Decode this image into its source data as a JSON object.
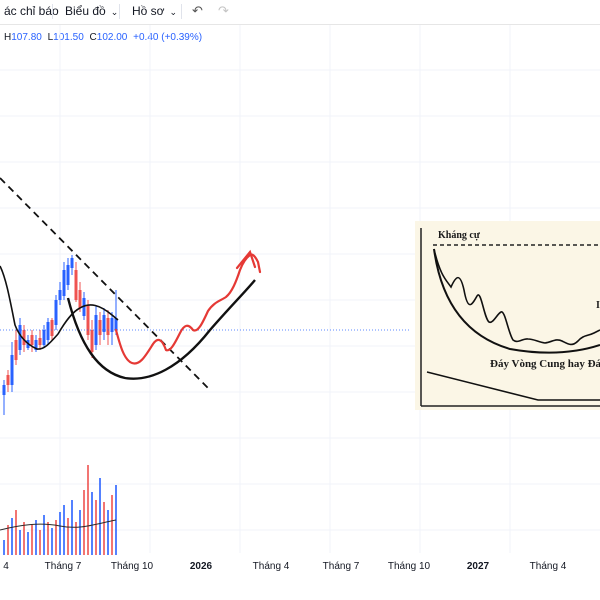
{
  "toolbar": {
    "indicators_label": "ác chỉ báo",
    "chart_label": "Biểu đồ",
    "profile_label": "Hồ sơ",
    "undo_icon": "undo-icon",
    "redo_icon": "redo-icon"
  },
  "ohlc": {
    "h_label": "H",
    "h_value": "107.80",
    "l_label": "L",
    "l_value": "101.50",
    "c_label": "C",
    "c_value": "102.00",
    "change": "+0.40 (+0.39%)"
  },
  "x_axis": {
    "labels": [
      {
        "text": "4",
        "bold": false
      },
      {
        "text": "Tháng 7",
        "bold": false
      },
      {
        "text": "Tháng 10",
        "bold": false
      },
      {
        "text": "2026",
        "bold": true
      },
      {
        "text": "Tháng 4",
        "bold": false
      },
      {
        "text": "Tháng 7",
        "bold": false
      },
      {
        "text": "Tháng 10",
        "bold": false
      },
      {
        "text": "2027",
        "bold": true
      },
      {
        "text": "Tháng 4",
        "bold": false
      }
    ]
  },
  "inset": {
    "resistance_label": "Kháng cự",
    "pattern_label": "Đáy Vòng Cung hay Đá",
    "edge_letter": "I"
  },
  "colors": {
    "up": "#2962ff",
    "down": "#ef5350",
    "projection": "#e53935",
    "current_price_line": "#2962ff"
  }
}
